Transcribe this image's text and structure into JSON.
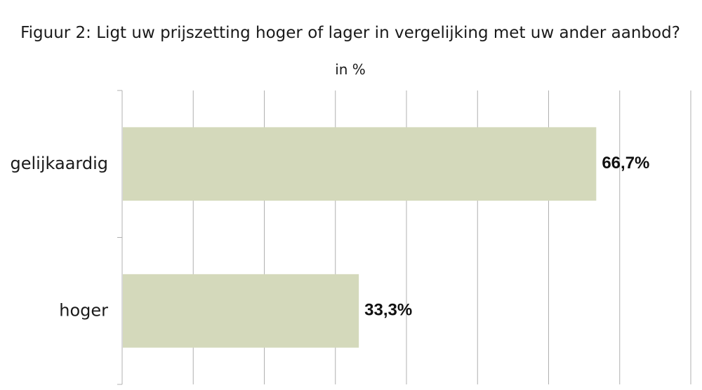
{
  "chart_data": {
    "type": "bar",
    "orientation": "horizontal",
    "title": "Figuur 2: Ligt uw prijszetting hoger of lager in vergelijking met uw ander aanbod?",
    "subtitle": "in %",
    "categories": [
      "gelijkaardig",
      "hoger"
    ],
    "values": [
      66.7,
      33.3
    ],
    "value_labels": [
      "66,7%",
      "33,3%"
    ],
    "xlim": [
      0,
      80
    ],
    "x_gridline_step": 10,
    "grid": true,
    "bar_color": "#d4d9bb",
    "gridline_color": "#b0b0b0"
  }
}
